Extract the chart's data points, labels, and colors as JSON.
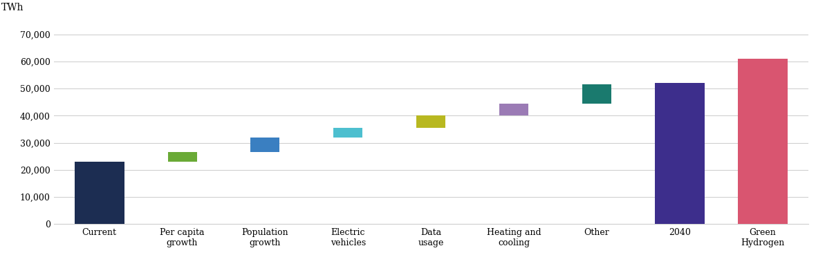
{
  "categories": [
    "Current",
    "Per capita\ngrowth",
    "Population\ngrowth",
    "Electric\nvehicles",
    "Data\nusage",
    "Heating and\ncooling",
    "Other",
    "2040",
    "Green\nHydrogen"
  ],
  "bar_bottoms": [
    0,
    23000,
    26500,
    32000,
    35500,
    40000,
    44500,
    0,
    0
  ],
  "bar_heights": [
    23000,
    3500,
    5500,
    3500,
    4500,
    4500,
    7000,
    52000,
    61000
  ],
  "bar_colors": [
    "#1c2d52",
    "#6aaa36",
    "#3a7fc1",
    "#4dbfcf",
    "#b8b820",
    "#9b7bb5",
    "#1a7a6e",
    "#3d2e8c",
    "#d95570"
  ],
  "bar_widths": [
    0.6,
    0.35,
    0.35,
    0.35,
    0.35,
    0.35,
    0.35,
    0.6,
    0.6
  ],
  "yticks": [
    0,
    10000,
    20000,
    30000,
    40000,
    50000,
    60000,
    70000
  ],
  "ytick_labels": [
    "0",
    "10,000",
    "20,000",
    "30,000",
    "40,000",
    "50,000",
    "60,000",
    "70,000"
  ],
  "ylabel": "TWh",
  "ylim": [
    0,
    75000
  ],
  "background_color": "#ffffff",
  "grid_color": "#d0d0d0",
  "figsize": [
    11.8,
    3.69
  ],
  "dpi": 100,
  "font_family": "serif"
}
